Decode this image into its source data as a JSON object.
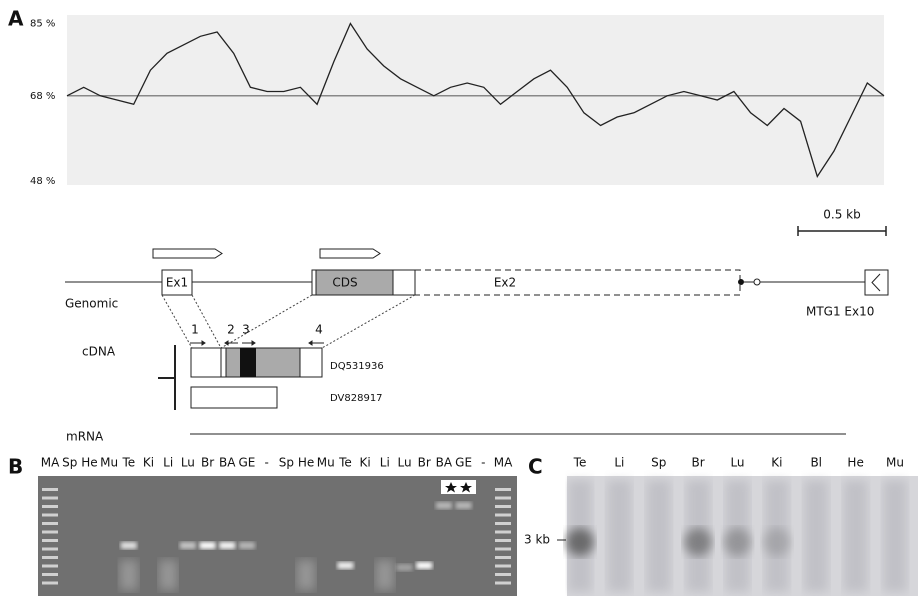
{
  "chart_data": {
    "type": "line",
    "values": [
      68,
      70,
      68,
      67,
      66,
      74,
      78,
      80,
      82,
      83,
      78,
      70,
      69,
      69,
      70,
      66,
      76,
      85,
      79,
      75,
      72,
      70,
      68,
      70,
      71,
      70,
      66,
      69,
      72,
      74,
      70,
      64,
      61,
      63,
      64,
      66,
      68,
      69,
      68,
      67,
      69,
      64,
      61,
      65,
      62,
      49,
      55,
      63,
      71,
      68
    ],
    "color": "#222222",
    "ylim": [
      47,
      87
    ],
    "yticks": [
      {
        "value": 85,
        "label": "85 %"
      },
      {
        "value": 68,
        "label": "68 %"
      },
      {
        "value": 48,
        "label": "48 %"
      }
    ],
    "hline": 68
  },
  "panels": {
    "a": "A",
    "b": "B",
    "c": "C"
  },
  "diagram": {
    "scale_bar": "0.5 kb",
    "genomic": "Genomic",
    "exon1": "Ex1",
    "cds": "CDS",
    "exon2": "Ex2",
    "mtg1": "MTG1 Ex10",
    "primers": [
      "1",
      "2",
      "3",
      "4"
    ],
    "cdna": "cDNA",
    "clones": [
      "DQ531936",
      "DV828917"
    ],
    "mrna": "mRNA"
  },
  "gel_b": {
    "lanes": [
      "MA",
      "Sp",
      "He",
      "Mu",
      "Te",
      "Ki",
      "Li",
      "Lu",
      "Br",
      "BA",
      "GE",
      "-",
      "Sp",
      "He",
      "Mu",
      "Te",
      "Ki",
      "Li",
      "Lu",
      "Br",
      "BA",
      "GE",
      "-",
      "MA"
    ]
  },
  "northern_c": {
    "lanes": [
      "Te",
      "Li",
      "Sp",
      "Br",
      "Lu",
      "Ki",
      "Bl",
      "He",
      "Mu"
    ],
    "size_marker": "3 kb"
  }
}
